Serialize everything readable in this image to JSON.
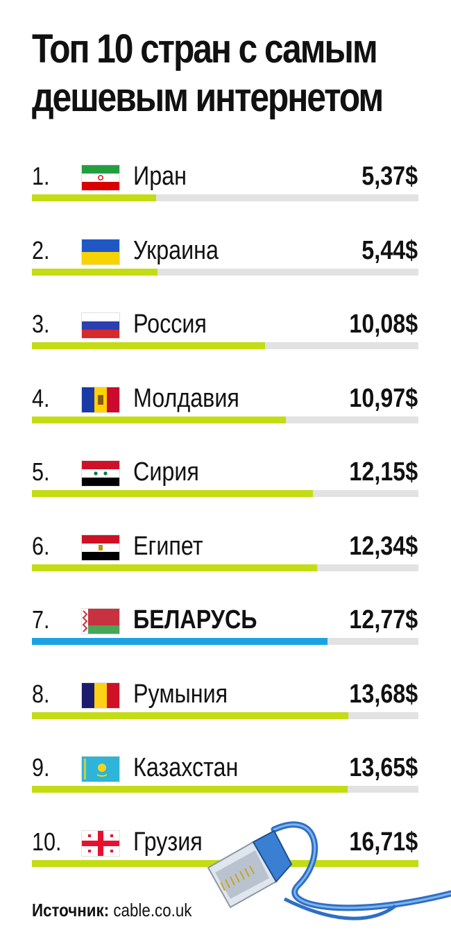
{
  "title_line1": "Топ 10 стран с самым",
  "title_line2": "дешевым интернетом",
  "source_label": "Источник:",
  "source_value": "cable.co.uk",
  "colors": {
    "bar": "#c3dc14",
    "highlight_bar": "#19a3e3",
    "track": "#e2e2e2"
  },
  "chart_data": {
    "type": "bar",
    "orientation": "horizontal",
    "title": "Топ 10 стран с самым дешевым интернетом",
    "xlim": [
      0,
      16.71
    ],
    "categories": [
      "Иран",
      "Украина",
      "Россия",
      "Молдавия",
      "Сирия",
      "Египет",
      "БЕЛАРУСЬ",
      "Румыния",
      "Казахстан",
      "Грузия"
    ],
    "values": [
      5.37,
      5.44,
      10.08,
      10.97,
      12.15,
      12.34,
      12.77,
      13.68,
      13.65,
      16.71
    ],
    "value_labels": [
      "5,37$",
      "5,44$",
      "10,08$",
      "10,97$",
      "12,15$",
      "12,34$",
      "12,77$",
      "13,68$",
      "13,65$",
      "16,71$"
    ],
    "ranks": [
      "1.",
      "2.",
      "3.",
      "4.",
      "5.",
      "6.",
      "7.",
      "8.",
      "9.",
      "10."
    ],
    "flags": [
      "iran-flag-icon",
      "ukraine-flag-icon",
      "russia-flag-icon",
      "moldova-flag-icon",
      "syria-flag-icon",
      "egypt-flag-icon",
      "belarus-flag-icon",
      "romania-flag-icon",
      "kazakhstan-flag-icon",
      "georgia-flag-icon"
    ],
    "highlight_index": 6
  }
}
